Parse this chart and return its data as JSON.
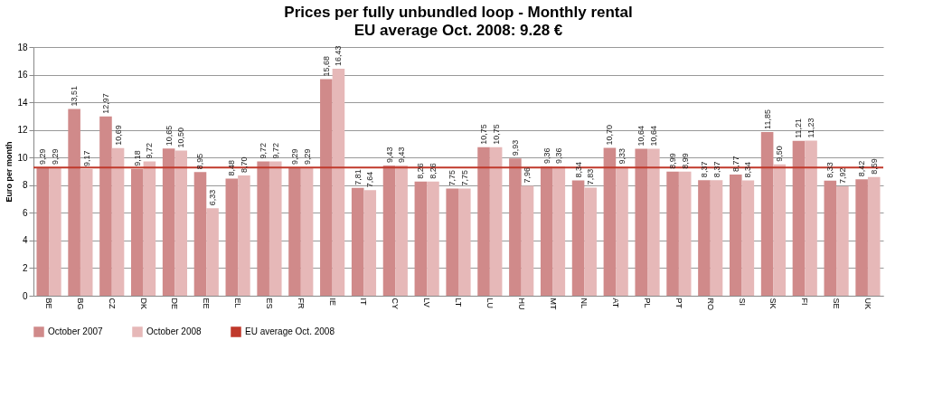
{
  "chart_data": {
    "type": "bar",
    "title": "Prices per fully unbundled loop - Monthly rental",
    "subtitle": "EU average Oct. 2008:  9.28 €",
    "ylabel": "Euro per month",
    "categories": [
      "BE",
      "BG",
      "CZ",
      "DK",
      "DE",
      "EE",
      "EL",
      "ES",
      "FR",
      "IE",
      "IT",
      "CY",
      "LV",
      "LT",
      "LU",
      "HU",
      "MT",
      "NL",
      "AT",
      "PL",
      "PT",
      "RO",
      "SI",
      "SK",
      "FI",
      "SE",
      "UK"
    ],
    "series": [
      {
        "name": "October 2007",
        "color": "#d08a8a",
        "values": [
          9.29,
          13.51,
          12.97,
          9.18,
          10.65,
          8.95,
          8.48,
          9.72,
          9.29,
          15.68,
          7.81,
          9.43,
          8.26,
          7.75,
          10.75,
          9.93,
          9.36,
          8.34,
          10.7,
          10.64,
          8.99,
          8.37,
          8.77,
          11.85,
          11.21,
          8.33,
          8.42
        ],
        "value_labels": [
          "9,29",
          "13,51",
          "12,97",
          "9,18",
          "10,65",
          "8,95",
          "8,48",
          "9,72",
          "9,29",
          "15,68",
          "7,81",
          "9,43",
          "8,26",
          "7,75",
          "10,75",
          "9,93",
          "9,36",
          "8,34",
          "10,70",
          "10,64",
          "8,99",
          "8,37",
          "8,77",
          "11,85",
          "11,21",
          "8,33",
          "8,42"
        ]
      },
      {
        "name": "October 2008",
        "color": "#e6b8b8",
        "values": [
          9.29,
          9.17,
          10.69,
          9.72,
          10.5,
          6.33,
          8.7,
          9.72,
          9.29,
          16.43,
          7.64,
          9.43,
          8.26,
          7.75,
          10.75,
          7.96,
          9.36,
          7.83,
          9.33,
          10.64,
          8.99,
          8.37,
          8.34,
          9.5,
          11.23,
          7.92,
          8.59
        ],
        "value_labels": [
          "9,29",
          "9,17",
          "10,69",
          "9,72",
          "10,50",
          "6,33",
          "8,70",
          "9,72",
          "9,29",
          "16,43",
          "7,64",
          "9,43",
          "8,26",
          "7,75",
          "10,75",
          "7,96",
          "9,36",
          "7,83",
          "9,33",
          "10,64",
          "8,99",
          "8,37",
          "8,34",
          "9,50",
          "11,23",
          "7,92",
          "8,59"
        ]
      }
    ],
    "ref_lines": [
      {
        "axis": "y",
        "value": 9.28,
        "label": "EU average Oct. 2008",
        "color": "#c0392b"
      }
    ],
    "ylim": [
      0,
      18
    ],
    "yticks": [
      0,
      2,
      4,
      6,
      8,
      10,
      12,
      14,
      16,
      18
    ],
    "grid": "y",
    "legend": "bottom"
  }
}
